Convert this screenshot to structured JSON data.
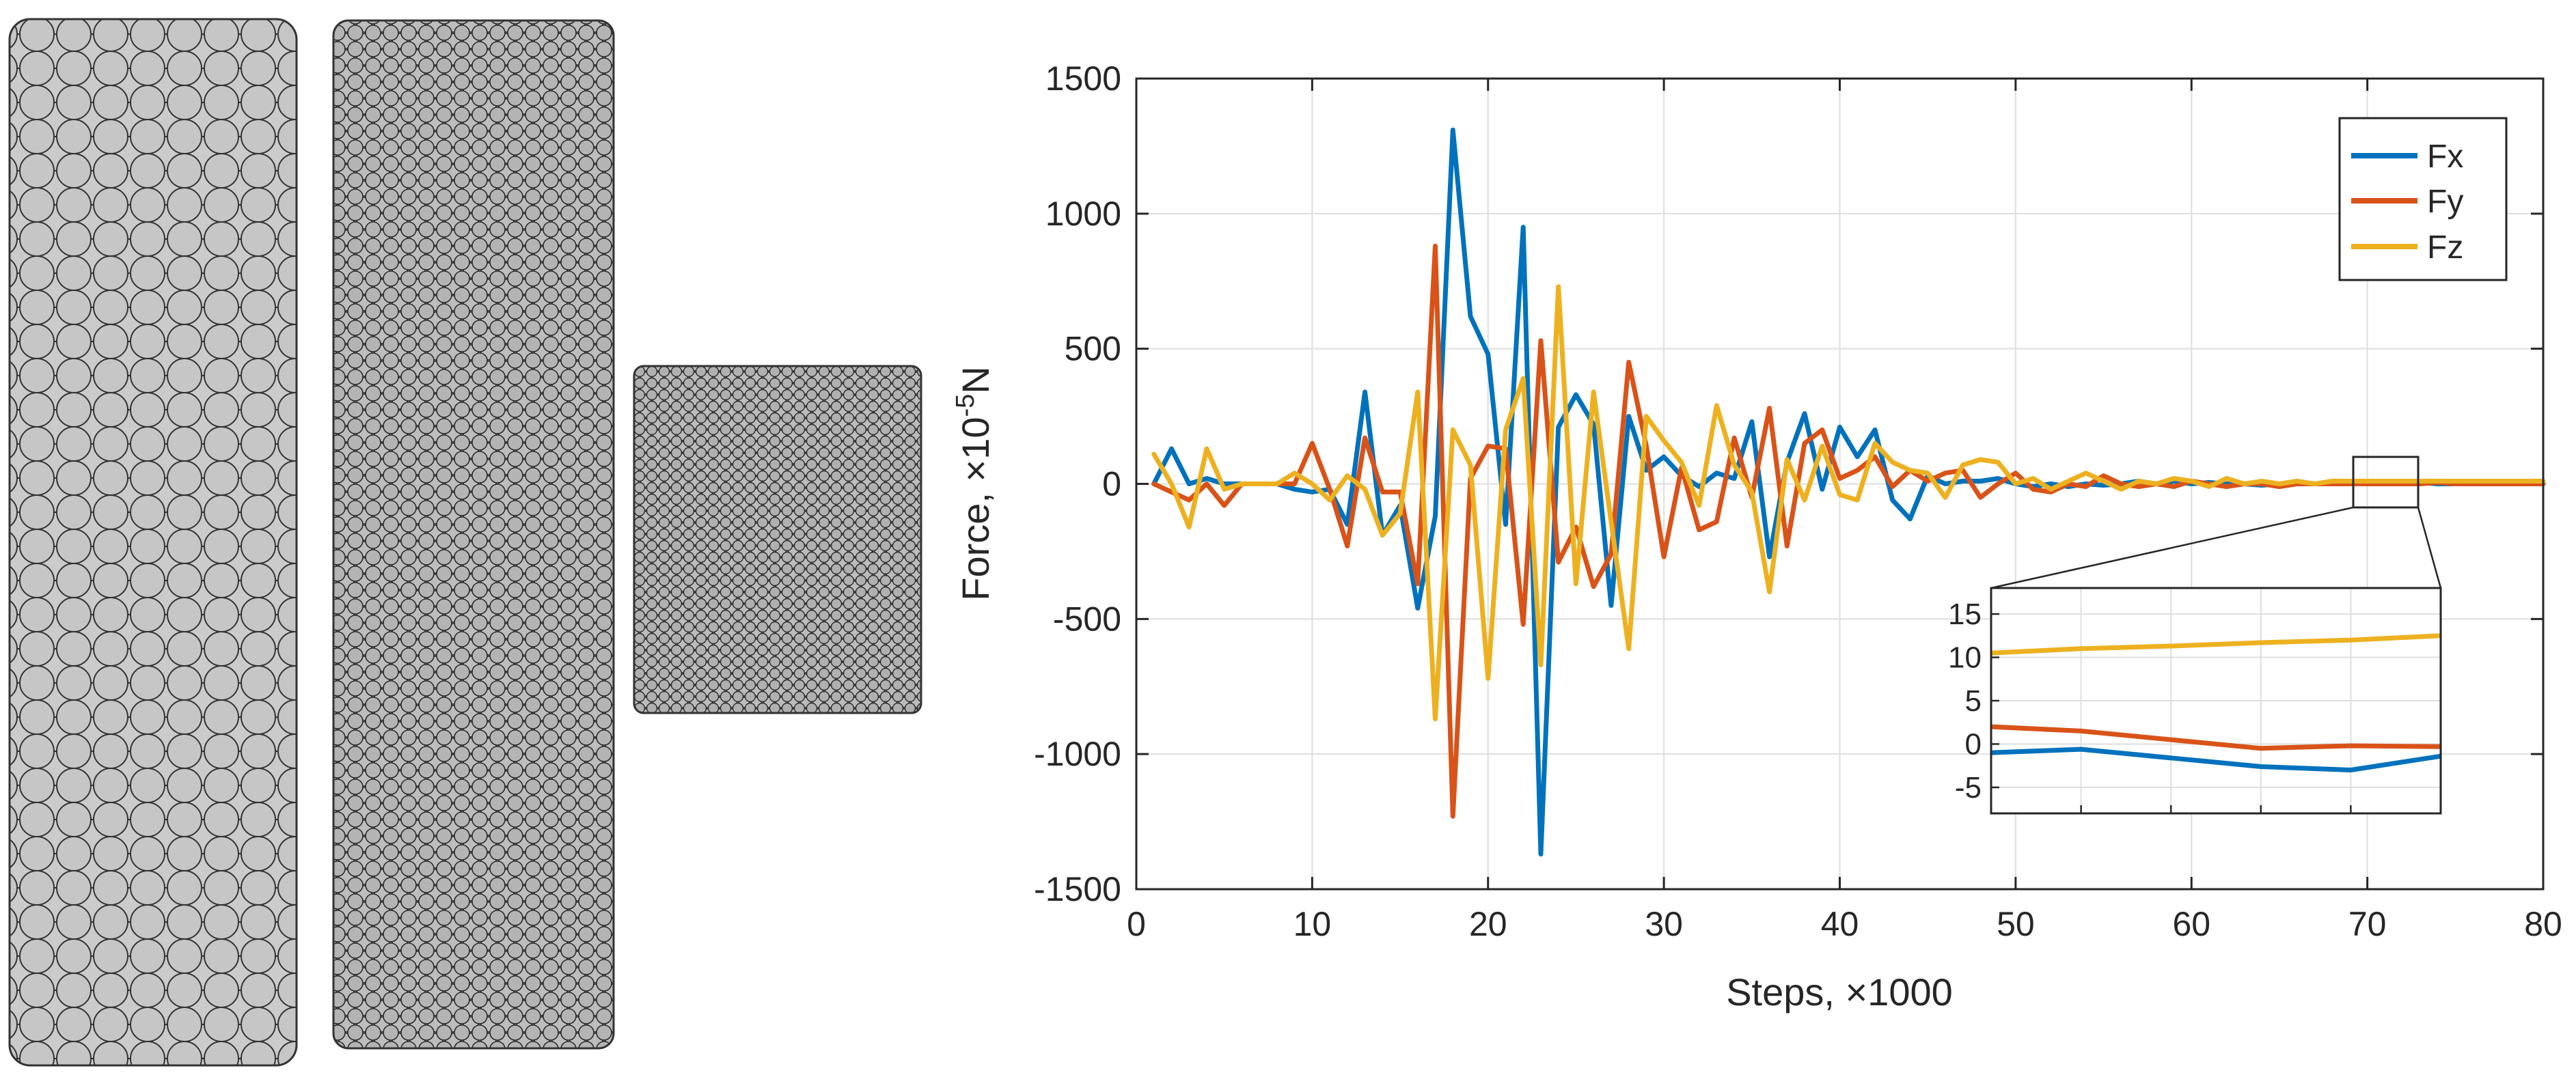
{
  "chart_data": {
    "type": "line",
    "xlabel": "Steps, ×1000",
    "ylabel_main": "Force, ×10",
    "ylabel_exp": "-5",
    "ylabel_unit": "N",
    "xlim": [
      0,
      80
    ],
    "ylim": [
      -1500,
      1500
    ],
    "x_ticks": [
      0,
      10,
      20,
      30,
      40,
      50,
      60,
      70,
      80
    ],
    "x_tick_labels": [
      "0",
      "10",
      "20",
      "30",
      "40",
      "50",
      "60",
      "70",
      "80"
    ],
    "y_ticks": [
      1500,
      1000,
      500,
      0,
      -500,
      -1000,
      -1500
    ],
    "y_tick_labels": [
      "1500",
      "1000",
      "500",
      "0",
      "-500",
      "-1000",
      "-1500"
    ],
    "grid": true,
    "legend_position": "top-right",
    "x": [
      1,
      2,
      3,
      4,
      5,
      6,
      7,
      8,
      9,
      10,
      11,
      12,
      13,
      14,
      15,
      16,
      17,
      18,
      19,
      20,
      21,
      22,
      23,
      24,
      25,
      26,
      27,
      28,
      29,
      30,
      31,
      32,
      33,
      34,
      35,
      36,
      37,
      38,
      39,
      40,
      41,
      42,
      43,
      44,
      45,
      46,
      47,
      48,
      49,
      50,
      51,
      52,
      53,
      54,
      55,
      56,
      57,
      58,
      59,
      60,
      61,
      62,
      63,
      64,
      65,
      66,
      67,
      68,
      69,
      70,
      71,
      72,
      73,
      74,
      75,
      76,
      77,
      78,
      79,
      80
    ],
    "series": [
      {
        "name": "Fx",
        "color": "#0072BD",
        "values": [
          0,
          130,
          0,
          20,
          0,
          0,
          0,
          0,
          -20,
          -30,
          -20,
          -150,
          340,
          -190,
          -80,
          -460,
          -120,
          1310,
          620,
          480,
          -150,
          950,
          -1370,
          210,
          330,
          220,
          -450,
          250,
          50,
          100,
          30,
          -10,
          40,
          20,
          230,
          -270,
          80,
          260,
          -20,
          210,
          100,
          200,
          -60,
          -130,
          30,
          0,
          10,
          10,
          20,
          0,
          -10,
          0,
          -10,
          0,
          -5,
          0,
          10,
          0,
          10,
          0,
          5,
          0,
          0,
          -5,
          0,
          5,
          0,
          0,
          0,
          0,
          0,
          0,
          5,
          0,
          0,
          0,
          0,
          0,
          0,
          0
        ]
      },
      {
        "name": "Fy",
        "color": "#D95319",
        "values": [
          0,
          -30,
          -60,
          0,
          -80,
          0,
          0,
          0,
          0,
          150,
          -20,
          -230,
          170,
          -30,
          -30,
          -370,
          880,
          -1230,
          20,
          140,
          130,
          -520,
          530,
          -290,
          -160,
          -380,
          -260,
          450,
          140,
          -270,
          60,
          -170,
          -140,
          170,
          -50,
          280,
          -230,
          150,
          200,
          20,
          50,
          100,
          -10,
          50,
          10,
          40,
          50,
          -50,
          0,
          40,
          -20,
          -30,
          0,
          -10,
          30,
          0,
          -10,
          0,
          -10,
          10,
          0,
          -10,
          0,
          0,
          -10,
          0,
          0,
          0,
          0,
          0,
          0,
          0,
          0,
          5,
          0,
          0,
          0,
          0,
          0,
          0
        ]
      },
      {
        "name": "Fz",
        "color": "#EDB120",
        "values": [
          110,
          0,
          -160,
          130,
          -20,
          0,
          0,
          0,
          40,
          0,
          -60,
          30,
          -20,
          -190,
          -110,
          340,
          -870,
          200,
          70,
          -720,
          200,
          390,
          -670,
          730,
          -370,
          340,
          -140,
          -610,
          250,
          160,
          80,
          -80,
          290,
          70,
          -30,
          -400,
          90,
          -60,
          140,
          -40,
          -60,
          150,
          80,
          50,
          40,
          -50,
          70,
          90,
          80,
          0,
          20,
          -20,
          10,
          40,
          10,
          -20,
          10,
          0,
          20,
          10,
          -10,
          20,
          0,
          10,
          0,
          10,
          0,
          10,
          10,
          10,
          10,
          10,
          10,
          10,
          10,
          10,
          10,
          10,
          10,
          10
        ]
      }
    ],
    "inset": {
      "xlim": [
        68,
        73
      ],
      "ylim": [
        -8,
        18
      ],
      "y_ticks": [
        15,
        10,
        5,
        0,
        -5
      ],
      "y_tick_labels": [
        "15",
        "10",
        "5",
        "0",
        "-5"
      ],
      "grid": true,
      "x": [
        68,
        69,
        70,
        71,
        72,
        73
      ],
      "series": [
        {
          "name": "Fx",
          "values": [
            -1.0,
            -0.6,
            -1.6,
            -2.6,
            -3.0,
            -1.4
          ]
        },
        {
          "name": "Fy",
          "values": [
            2.0,
            1.5,
            0.5,
            -0.5,
            -0.2,
            -0.3
          ]
        },
        {
          "name": "Fz",
          "values": [
            10.5,
            11.0,
            11.3,
            11.7,
            12.0,
            12.5
          ]
        }
      ]
    }
  }
}
